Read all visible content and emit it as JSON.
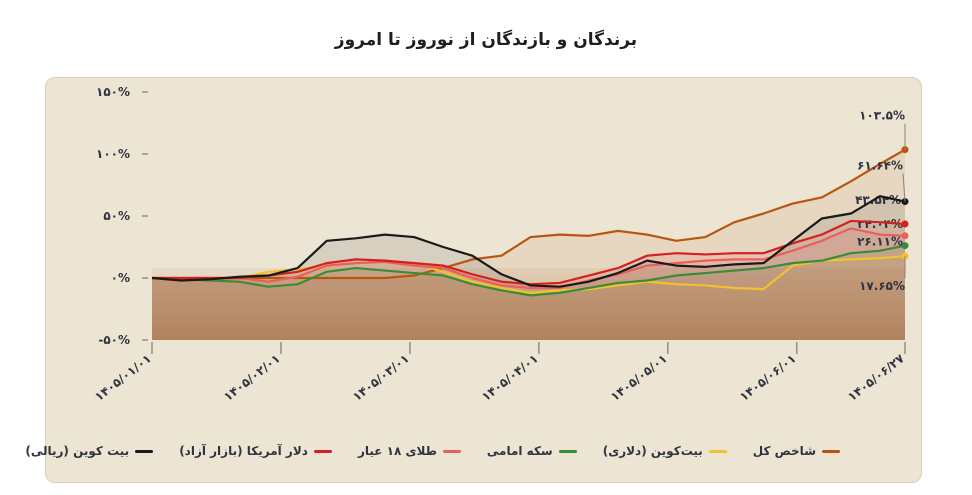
{
  "chart_data": {
    "type": "line",
    "title": "برندگان و بازندگان از نوروز تا امروز",
    "x": [
      "1405/01/01",
      "1405/01/08",
      "1405/01/15",
      "1405/01/22",
      "1405/01/29",
      "1405/02/05",
      "1405/02/12",
      "1405/02/19",
      "1405/02/26",
      "1405/03/02",
      "1405/03/09",
      "1405/03/16",
      "1405/03/23",
      "1405/03/30",
      "1405/04/06",
      "1405/04/13",
      "1405/04/20",
      "1405/04/27",
      "1405/05/03",
      "1405/05/10",
      "1405/05/17",
      "1405/05/24",
      "1405/05/31",
      "1405/06/07",
      "1405/06/14",
      "1405/06/21",
      "1405/06/27"
    ],
    "series": [
      {
        "name": "شاخص کل",
        "color": "#b8560f",
        "values": [
          0,
          0,
          0,
          0,
          0,
          0,
          0,
          0,
          0,
          2,
          8,
          15,
          18,
          33,
          35,
          34,
          38,
          35,
          30,
          33,
          45,
          52,
          60,
          65,
          78,
          92,
          103.5
        ],
        "value_labels": [
          null,
          null,
          null,
          null,
          null,
          null,
          null,
          null,
          null,
          null,
          null,
          null,
          null,
          null,
          null,
          null,
          null,
          null,
          null,
          null,
          null,
          null,
          null,
          null,
          null,
          null,
          "۱۰۳.۵%"
        ]
      },
      {
        "name": "بیت‌کوین (دلاری)",
        "color": "#f2c12e",
        "values": [
          0,
          -2,
          -1,
          0,
          5,
          7,
          10,
          12,
          14,
          12,
          5,
          -3,
          -8,
          -12,
          -10,
          -9,
          -6,
          -3,
          -5,
          -6,
          -8,
          -9,
          10,
          14,
          15,
          16,
          17.65
        ],
        "value_labels": [
          null,
          null,
          null,
          null,
          null,
          null,
          null,
          null,
          null,
          null,
          null,
          null,
          null,
          null,
          null,
          null,
          null,
          null,
          null,
          null,
          null,
          null,
          null,
          null,
          null,
          null,
          "۱۷.۶۵%"
        ]
      },
      {
        "name": "سکه امامی",
        "color": "#3a8c3a",
        "values": [
          0,
          -1,
          -2,
          -3,
          -7,
          -5,
          5,
          8,
          6,
          4,
          2,
          -5,
          -10,
          -14,
          -12,
          -8,
          -4,
          -2,
          2,
          4,
          6,
          8,
          12,
          14,
          20,
          22,
          26.11
        ],
        "value_labels": [
          null,
          null,
          null,
          null,
          null,
          null,
          null,
          null,
          null,
          null,
          null,
          null,
          null,
          null,
          null,
          null,
          null,
          null,
          null,
          null,
          null,
          null,
          null,
          null,
          null,
          null,
          "۲۶.۱۱%"
        ]
      },
      {
        "name": "طلای ۱۸ عیار",
        "color": "#e8605a",
        "values": [
          0,
          -2,
          -1,
          0,
          -3,
          1,
          10,
          12,
          13,
          10,
          8,
          0,
          -6,
          -8,
          -8,
          -2,
          3,
          10,
          12,
          14,
          15,
          15,
          22,
          30,
          40,
          35,
          34.04
        ],
        "value_labels": [
          null,
          null,
          null,
          null,
          null,
          null,
          null,
          null,
          null,
          null,
          null,
          null,
          null,
          null,
          null,
          null,
          null,
          null,
          null,
          null,
          null,
          null,
          null,
          null,
          null,
          null,
          "۳۴.۰۴%"
        ]
      },
      {
        "name": "دلار آمریکا (بازار آزاد)",
        "color": "#d42020",
        "values": [
          0,
          0,
          0,
          0,
          2,
          5,
          12,
          15,
          14,
          12,
          10,
          3,
          -3,
          -5,
          -4,
          2,
          8,
          18,
          20,
          19,
          20,
          20,
          28,
          35,
          46,
          45,
          43.54
        ],
        "value_labels": [
          null,
          null,
          null,
          null,
          null,
          null,
          null,
          null,
          null,
          null,
          null,
          null,
          null,
          null,
          null,
          null,
          null,
          null,
          null,
          null,
          null,
          null,
          null,
          null,
          null,
          null,
          "۴۳.۵۴%"
        ]
      },
      {
        "name": "بیت کوین (ریالی)",
        "color": "#1a1a1a",
        "values": [
          0,
          -2,
          -1,
          1,
          2,
          8,
          30,
          32,
          35,
          33,
          25,
          18,
          3,
          -6,
          -7,
          -3,
          4,
          14,
          10,
          9,
          11,
          12,
          30,
          48,
          52,
          66,
          61.64
        ],
        "value_labels": [
          null,
          null,
          null,
          null,
          null,
          null,
          null,
          null,
          null,
          null,
          null,
          null,
          null,
          null,
          null,
          null,
          null,
          null,
          null,
          null,
          null,
          null,
          null,
          null,
          null,
          null,
          "۶۱.۶۴%"
        ]
      }
    ],
    "ylim": [
      -50,
      150
    ],
    "yticks": [
      {
        "value": -50,
        "label": "-۵۰%"
      },
      {
        "value": 0,
        "label": "۰%"
      },
      {
        "value": 50,
        "label": "۵۰%"
      },
      {
        "value": 100,
        "label": "۱۰۰%"
      },
      {
        "value": 150,
        "label": "۱۵۰%"
      }
    ],
    "xlim": [
      "1405/01/01",
      "1405/06/27"
    ],
    "xticks": [
      {
        "value": "1405/01/01",
        "label": "۱۴۰۵/۰۱/۰۱"
      },
      {
        "value": "1405/02/01",
        "label": "۱۴۰۵/۰۲/۰۱"
      },
      {
        "value": "1405/03/01",
        "label": "۱۴۰۵/۰۳/۰۱"
      },
      {
        "value": "1405/04/01",
        "label": "۱۴۰۵/۰۴/۰۱"
      },
      {
        "value": "1405/05/01",
        "label": "۱۴۰۵/۰۵/۰۱"
      },
      {
        "value": "1405/06/01",
        "label": "۱۴۰۵/۰۶/۰۱"
      },
      {
        "value": "1405/06/27",
        "label": "۱۴۰۵/۰۶/۲۷"
      }
    ],
    "legend": "bottom"
  }
}
